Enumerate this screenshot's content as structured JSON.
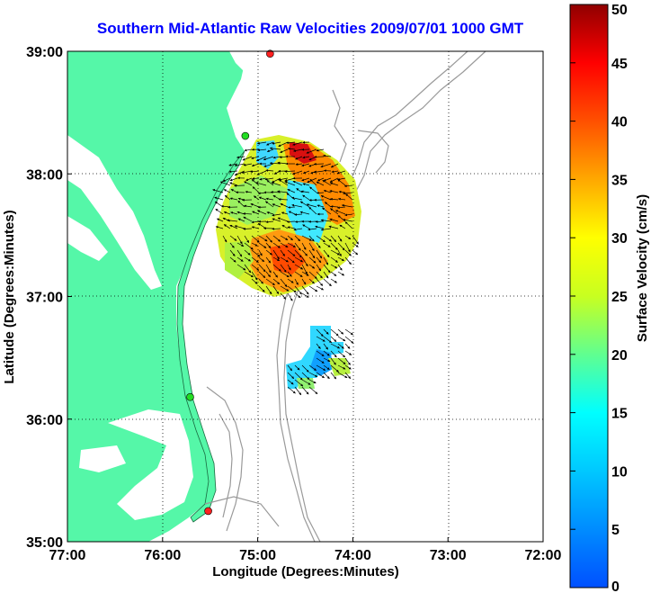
{
  "title": "Southern Mid-Atlantic Raw Velocities 2009/07/01 1000 GMT",
  "xaxis": {
    "label": "Longitude (Degrees:Minutes)",
    "ticks": [
      "77:00",
      "76:00",
      "75:00",
      "74:00",
      "73:00",
      "72:00"
    ]
  },
  "yaxis": {
    "label": "Latitude (Degrees:Minutes)",
    "ticks": [
      "39:00",
      "38:00",
      "37:00",
      "36:00",
      "35:00"
    ]
  },
  "colorbar": {
    "label": "Surface Velocity (cm/s)",
    "ticks": [
      "50",
      "45",
      "40",
      "35",
      "30",
      "25",
      "20",
      "15",
      "10",
      "5",
      "0"
    ],
    "range": [
      0,
      50
    ]
  },
  "colors": {
    "land": "#55f7a8",
    "title": "#0000ff",
    "station": "#ff0000",
    "station_alt": "#00dd00",
    "bathymetry": "#9a9a9a"
  },
  "stations": [
    {
      "lon": 74.87,
      "lat": 38.98,
      "color": "#ff2020"
    },
    {
      "lon": 75.13,
      "lat": 38.31,
      "color": "#22dd22"
    },
    {
      "lon": 75.71,
      "lat": 36.18,
      "color": "#22dd22"
    },
    {
      "lon": 75.52,
      "lat": 35.25,
      "color": "#ff2020"
    }
  ]
}
